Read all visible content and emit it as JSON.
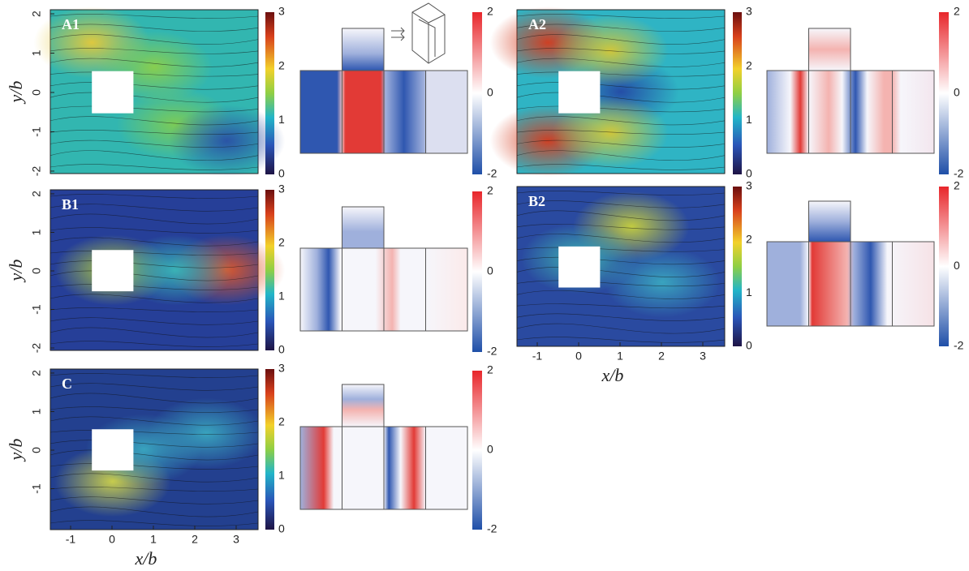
{
  "panels": [
    {
      "label": "A1",
      "y_label": "y/b",
      "y_ticks": [
        "2",
        "1",
        "0",
        "-1",
        "-2"
      ],
      "colorbar_ticks": [
        "3",
        "2",
        "1",
        "0"
      ],
      "pressure_colorbar_ticks": [
        "2",
        "0",
        "-2"
      ]
    },
    {
      "label": "B1",
      "y_label": "y/b",
      "y_ticks": [
        "2",
        "1",
        "0",
        "-1",
        "-2"
      ],
      "colorbar_ticks": [
        "3",
        "2",
        "1",
        "0"
      ],
      "pressure_colorbar_ticks": [
        "2",
        "0",
        "-2"
      ]
    },
    {
      "label": "C",
      "y_label": "y/b",
      "y_ticks": [
        "2",
        "1",
        "0",
        "-1"
      ],
      "colorbar_ticks": [
        "3",
        "2",
        "1",
        "0"
      ],
      "pressure_colorbar_ticks": [
        "2",
        "0",
        "-2"
      ]
    },
    {
      "label": "A2",
      "colorbar_ticks": [
        "3",
        "2",
        "1",
        "0"
      ],
      "pressure_colorbar_ticks": [
        "2",
        "0",
        "-2"
      ]
    },
    {
      "label": "B2",
      "colorbar_ticks": [
        "3",
        "2",
        "1",
        "0"
      ],
      "pressure_colorbar_ticks": [
        "2",
        "0",
        "-2"
      ]
    }
  ],
  "x_axis": {
    "label": "x/b",
    "ticks": [
      "-1",
      "0",
      "1",
      "2",
      "3"
    ]
  }
}
